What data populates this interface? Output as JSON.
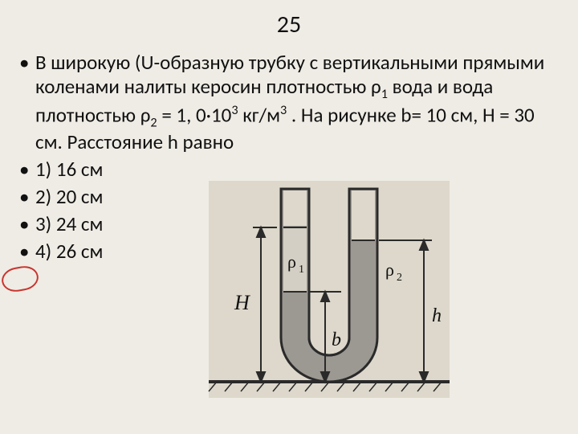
{
  "title": "25",
  "problem_html": "В широкую (U-образную трубку с вертикальными прямыми коленами налиты керосин плотностью ρ<span class=\"sub\">1</span> вода и  вода  плотностью ρ<span class=\"sub\">2</span> = 1, 0·10<span class=\"sup\">3</span> кг/м<span class=\"sup\">3</span> . На рисунке b= 10 см, Н = 30 см. Расстояние h равно",
  "options": [
    "1) 16 см",
    "2) 20 см",
    "3) 24 см",
    "4) 26 см"
  ],
  "circled_option_index": 3,
  "figure": {
    "background": "#efece5",
    "paper": "#d9d4c6",
    "stroke": "#2a2a2a",
    "tube_fill": "#a5a19a",
    "kerosene_fill": "#d9d4c6",
    "water_fill": "#a5a19a",
    "labels": {
      "H": "H",
      "b": "b",
      "h": "h",
      "rho1": "ρ₁",
      "rho2": "ρ₂"
    }
  }
}
